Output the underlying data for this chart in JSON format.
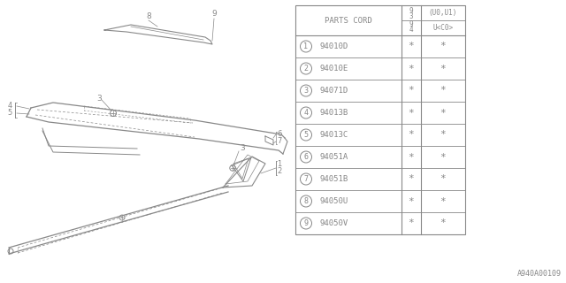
{
  "figure_id": "A940A00109",
  "background_color": "#ffffff",
  "line_color": "#888888",
  "text_color": "#888888",
  "table": {
    "rows": [
      [
        "1",
        "94010D"
      ],
      [
        "2",
        "94010E"
      ],
      [
        "3",
        "94071D"
      ],
      [
        "4",
        "94013B"
      ],
      [
        "5",
        "94013C"
      ],
      [
        "6",
        "94051A"
      ],
      [
        "7",
        "94051B"
      ],
      [
        "8",
        "94050U"
      ],
      [
        "9",
        "94050V"
      ]
    ]
  }
}
